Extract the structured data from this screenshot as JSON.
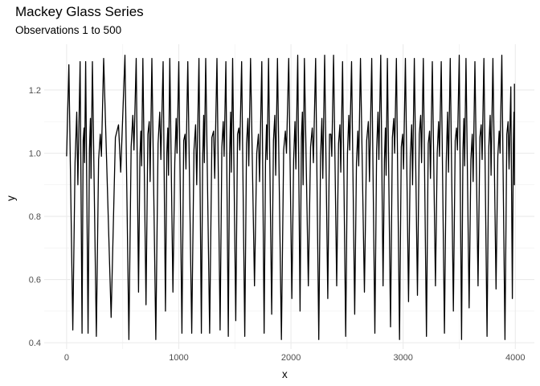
{
  "chart_data": {
    "type": "line",
    "title": "Mackey Glass Series",
    "subtitle": "Observations 1 to 500",
    "xlabel": "x",
    "ylabel": "y",
    "xlim": [
      -200,
      4170
    ],
    "ylim": [
      0.38,
      1.345
    ],
    "x_ticks": [
      0,
      1000,
      2000,
      3000,
      4000
    ],
    "x_tick_labels": [
      "0",
      "1000",
      "2000",
      "3000",
      "4000"
    ],
    "y_ticks": [
      0.4,
      0.6,
      0.8,
      1.0,
      1.2
    ],
    "y_tick_labels": [
      "0.4",
      "0.6",
      "0.8",
      "1.0",
      "1.2"
    ],
    "grid": true,
    "legend": "none",
    "line_color": "#000000",
    "series": [
      {
        "x_start": 0,
        "x_step": 8,
        "count": 500,
        "cycle_peaks_x": [
          20,
          120,
          170,
          230,
          330,
          520,
          620,
          680,
          760,
          860,
          920,
          1000,
          1080,
          1180,
          1240,
          1340,
          1420,
          1480,
          1560,
          1640,
          1740,
          1800,
          1880,
          1980,
          2060,
          2120,
          2220,
          2300,
          2380,
          2460,
          2540,
          2620,
          2720,
          2800,
          2860,
          2940,
          3020,
          3100,
          3180,
          3260,
          3340,
          3420,
          3500,
          3560,
          3640,
          3720,
          3800,
          3880,
          3960
        ],
        "cycle_peaks_y": [
          1.28,
          1.29,
          1.29,
          1.29,
          1.3,
          1.31,
          1.3,
          1.3,
          1.3,
          1.29,
          1.3,
          1.29,
          1.29,
          1.3,
          1.3,
          1.3,
          1.29,
          1.3,
          1.29,
          1.3,
          1.29,
          1.3,
          1.3,
          1.3,
          1.31,
          1.3,
          1.3,
          1.31,
          1.31,
          1.29,
          1.29,
          1.3,
          1.3,
          1.31,
          1.3,
          1.3,
          1.3,
          1.3,
          1.3,
          1.29,
          1.29,
          1.3,
          1.31,
          1.3,
          1.29,
          1.3,
          1.3,
          1.31,
          1.21
        ],
        "cycle_troughs_y": [
          0.44,
          0.43,
          0.43,
          0.42,
          0.48,
          0.41,
          0.56,
          0.52,
          0.41,
          0.5,
          0.56,
          0.43,
          0.43,
          0.43,
          0.43,
          0.44,
          0.42,
          0.47,
          0.42,
          0.58,
          0.43,
          0.49,
          0.41,
          0.54,
          0.5,
          0.58,
          0.41,
          0.54,
          0.58,
          0.42,
          0.49,
          0.56,
          0.43,
          0.58,
          0.45,
          0.41,
          0.53,
          0.55,
          0.42,
          0.58,
          0.43,
          0.5,
          0.41,
          0.51,
          0.58,
          0.42,
          0.57,
          0.41,
          0.54
        ]
      }
    ]
  }
}
